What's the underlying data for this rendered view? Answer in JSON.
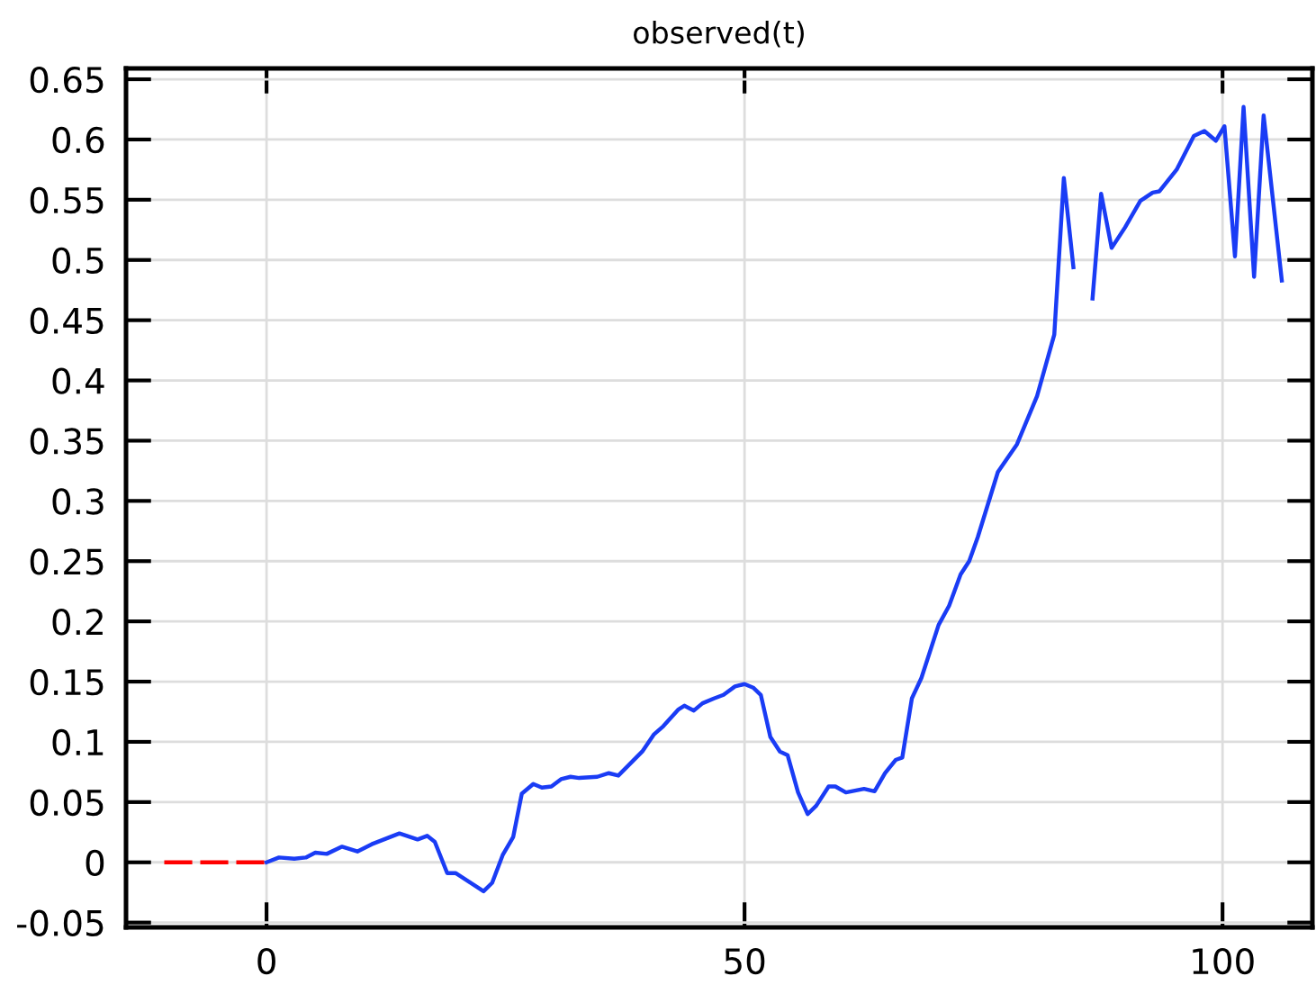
{
  "chart_data": {
    "type": "line",
    "title": "observed(t)",
    "series": [
      {
        "color": "#ff0000",
        "line_style": "dashed",
        "x": [
          -10.7,
          0
        ],
        "values": [
          0,
          0
        ]
      },
      {
        "color": "#1a3cf5",
        "line_style": "solid",
        "x": [
          0,
          1.3,
          2.9,
          4.1,
          5.1,
          6.3,
          7.9,
          9.5,
          11.0,
          13.9,
          15.8,
          16.8,
          17.6,
          18.9,
          19.8,
          22.7,
          23.6,
          24.7,
          25.8,
          26.7,
          27.9,
          28.8,
          29.8,
          30.8,
          31.8,
          32.7,
          34.6,
          35.8,
          36.8,
          39.3,
          40.5,
          41.5,
          43.1,
          43.7,
          44.7,
          45.6,
          46.8,
          47.8,
          49.0,
          50.0,
          50.9,
          51.7,
          52.7,
          53.7,
          54.5,
          55.6,
          56.6,
          57.5,
          58.8,
          59.5,
          60.6,
          62.5,
          63.6,
          64.7,
          65.8,
          66.5,
          67.5,
          68.5,
          70.3,
          71.4,
          72.6,
          73.5,
          74.4,
          76.5,
          78.5,
          80.6,
          82.4,
          83.4,
          84.4,
          85.4,
          86.4,
          87.3,
          88.4,
          89.8,
          91.4,
          92.7,
          93.4,
          95.2,
          97.0,
          98.1,
          99.3,
          100.2,
          101.3,
          102.2,
          103.3,
          104.3,
          106.2
        ],
        "values": [
          0,
          0.004,
          0.003,
          0.004,
          0.008,
          0.007,
          0.013,
          0.009,
          0.015,
          0.024,
          0.019,
          0.022,
          0.017,
          -0.009,
          -0.009,
          -0.024,
          -0.017,
          0.006,
          0.021,
          0.057,
          0.065,
          0.062,
          0.063,
          0.069,
          0.071,
          0.07,
          0.071,
          0.074,
          0.072,
          0.092,
          0.106,
          0.113,
          0.127,
          0.13,
          0.126,
          0.132,
          0.136,
          0.139,
          0.146,
          0.148,
          0.145,
          0.139,
          0.104,
          0.092,
          0.089,
          0.058,
          0.04,
          0.047,
          0.063,
          0.063,
          0.058,
          0.061,
          0.059,
          0.074,
          0.085,
          0.087,
          0.136,
          0.153,
          0.197,
          0.213,
          0.239,
          0.25,
          0.27,
          0.324,
          0.347,
          0.387,
          0.438,
          0.568,
          0.494,
          null,
          0.468,
          0.555,
          0.51,
          0.527,
          0.549,
          0.556,
          0.557,
          0.575,
          0.603,
          0.607,
          0.599,
          0.611,
          0.503,
          0.627,
          0.486,
          0.62,
          0.483
        ]
      }
    ],
    "xlim": [
      -14.7,
      109.4
    ],
    "ylim": [
      -0.054,
      0.659
    ],
    "xticks": [
      0,
      50,
      100
    ],
    "yticks": [
      -0.05,
      0,
      0.05,
      0.1,
      0.15,
      0.2,
      0.25,
      0.3,
      0.35,
      0.4,
      0.45,
      0.5,
      0.55,
      0.6,
      0.65
    ],
    "grid": true,
    "legend": false
  }
}
